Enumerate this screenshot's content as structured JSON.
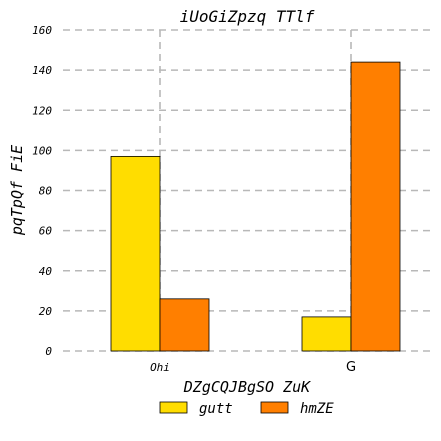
{
  "chart_data": {
    "type": "bar",
    "title": "iUoGiZpzq TTlf",
    "xlabel": "DZgCQJBgSO ZuK",
    "ylabel": "pqTpQf FiE",
    "categories": [
      "Ohi",
      "G"
    ],
    "series": [
      {
        "name": "gutt",
        "values": [
          97,
          17
        ],
        "color": "#FFDD00"
      },
      {
        "name": "hmZE",
        "values": [
          26,
          144
        ],
        "color": "#FF7F00"
      }
    ],
    "ylim": [
      0,
      160
    ],
    "yticks": [
      "0",
      "20",
      "40",
      "60",
      "80",
      "100",
      "120",
      "140",
      "160"
    ],
    "grid": true,
    "legend_position": "bottom-center"
  }
}
